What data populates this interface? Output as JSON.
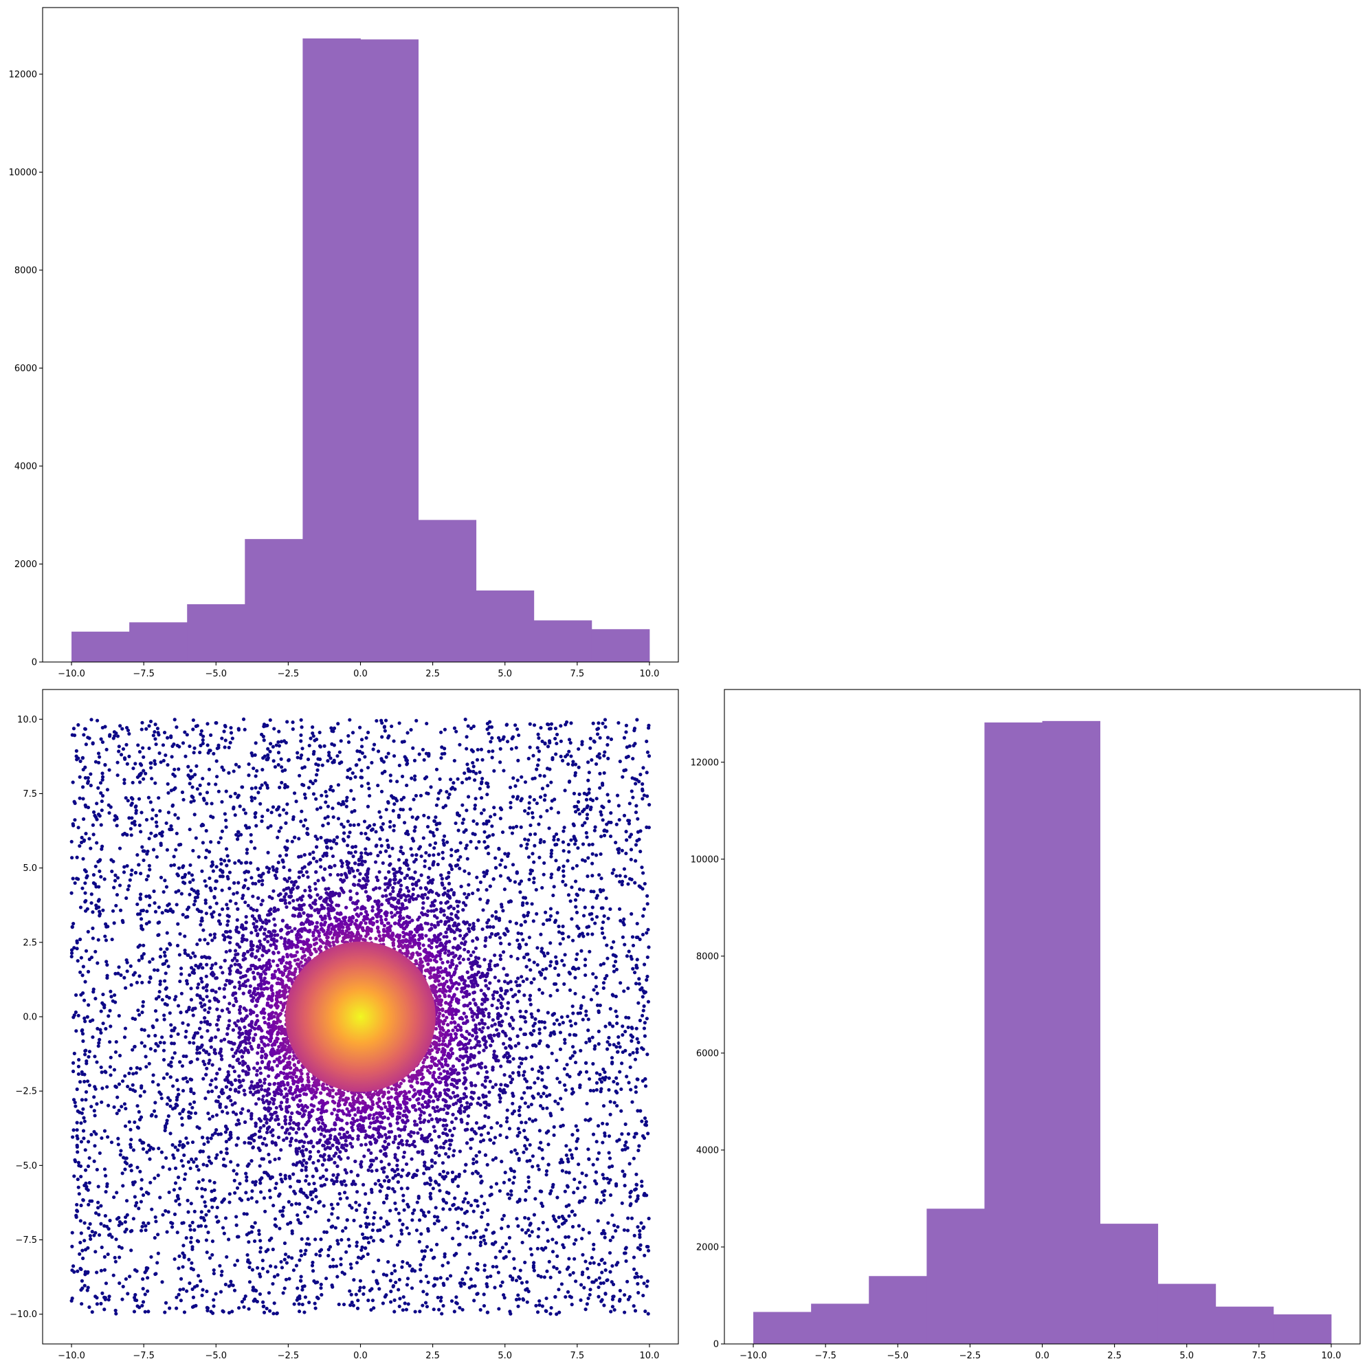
{
  "figure": {
    "layout": "2x2 corner plot",
    "bar_color": "#9467bd",
    "scatter_colormap": [
      "#0d0887",
      "#6a00a8",
      "#b12a90",
      "#e16462",
      "#fca636",
      "#f0f921"
    ]
  },
  "chart_data": [
    {
      "id": "hist-top",
      "type": "bar",
      "histogram": true,
      "bin_edges": [
        -10,
        -8,
        -6,
        -4,
        -2,
        0,
        2,
        4,
        6,
        8,
        10
      ],
      "values": [
        620,
        810,
        1180,
        2510,
        12730,
        12710,
        2900,
        1460,
        850,
        670
      ],
      "xlim": [
        -11,
        11
      ],
      "ylim": [
        0,
        13360
      ],
      "x_ticks": [
        -10,
        -7.5,
        -5,
        -2.5,
        0,
        2.5,
        5,
        7.5,
        10
      ],
      "x_tick_labels": [
        "−10.0",
        "−7.5",
        "−5.0",
        "−2.5",
        "0.0",
        "2.5",
        "5.0",
        "7.5",
        "10.0"
      ],
      "y_ticks": [
        0,
        2000,
        4000,
        6000,
        8000,
        10000,
        12000
      ],
      "y_tick_labels": [
        "0",
        "2000",
        "4000",
        "6000",
        "8000",
        "10000",
        "12000"
      ],
      "color": "#9467bd",
      "title": "",
      "xlabel": "",
      "ylabel": "",
      "grid": false
    },
    {
      "id": "scatter",
      "type": "scatter",
      "description_of_points": "~30000 points: uniform background on [-10,10]^2 plus a dense Gaussian core centred at (0,0); colour by local density (plasma colormap)",
      "xlim": [
        -11,
        11
      ],
      "ylim": [
        -11,
        11
      ],
      "x_ticks": [
        -10,
        -7.5,
        -5,
        -2.5,
        0,
        2.5,
        5,
        7.5,
        10
      ],
      "x_tick_labels": [
        "−10.0",
        "−7.5",
        "−5.0",
        "−2.5",
        "0.0",
        "2.5",
        "5.0",
        "7.5",
        "10.0"
      ],
      "y_ticks": [
        -10,
        -7.5,
        -5,
        -2.5,
        0,
        2.5,
        5,
        7.5,
        10
      ],
      "y_tick_labels": [
        "−10.0",
        "−7.5",
        "−5.0",
        "−2.5",
        "0.0",
        "2.5",
        "5.0",
        "7.5",
        "10.0"
      ],
      "title": "",
      "xlabel": "",
      "ylabel": "",
      "grid": false
    },
    {
      "id": "hist-right",
      "type": "bar",
      "histogram": true,
      "bin_edges": [
        -10,
        -8,
        -6,
        -4,
        -2,
        0,
        2,
        4,
        6,
        8,
        10
      ],
      "values": [
        660,
        830,
        1400,
        2790,
        12820,
        12850,
        2480,
        1240,
        770,
        610
      ],
      "xlim": [
        -11,
        11
      ],
      "ylim": [
        0,
        13500
      ],
      "x_ticks": [
        -10,
        -7.5,
        -5,
        -2.5,
        0,
        2.5,
        5,
        7.5,
        10
      ],
      "x_tick_labels": [
        "−10.0",
        "−7.5",
        "−5.0",
        "−2.5",
        "0.0",
        "2.5",
        "5.0",
        "7.5",
        "10.0"
      ],
      "y_ticks": [
        0,
        2000,
        4000,
        6000,
        8000,
        10000,
        12000
      ],
      "y_tick_labels": [
        "0",
        "2000",
        "4000",
        "6000",
        "8000",
        "10000",
        "12000"
      ],
      "color": "#9467bd",
      "title": "",
      "xlabel": "",
      "ylabel": "",
      "grid": false
    }
  ]
}
